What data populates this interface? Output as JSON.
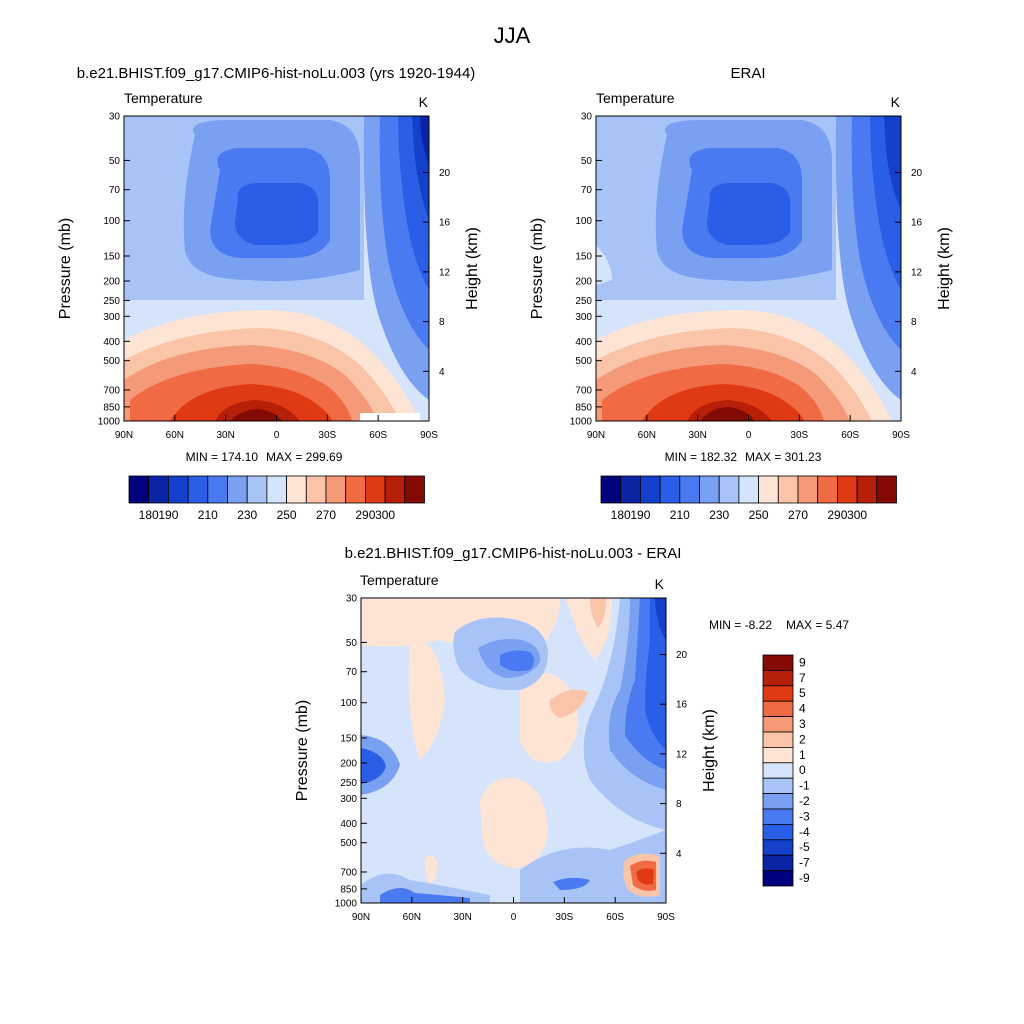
{
  "page_title": "JJA",
  "chart_data": [
    {
      "type": "contour",
      "title": "b.e21.BHIST.f09_g17.CMIP6-hist-noLu.003 (yrs 1920-1944)",
      "variable": "Temperature",
      "units": "K",
      "xlabel": "",
      "ylabel": "Pressure (mb)",
      "ylabel_right": "Height (km)",
      "x_tick_labels": [
        "90N",
        "60N",
        "30N",
        "0",
        "30S",
        "60S",
        "90S"
      ],
      "x_values": [
        90,
        60,
        30,
        0,
        -30,
        -60,
        -90
      ],
      "y_tick_labels": [
        "30",
        "50",
        "70",
        "100",
        "150",
        "200",
        "250",
        "300",
        "400",
        "500",
        "700",
        "850",
        "1000"
      ],
      "y_values": [
        30,
        50,
        70,
        100,
        150,
        200,
        250,
        300,
        400,
        500,
        700,
        850,
        1000
      ],
      "y_scale": "log",
      "right_tick_labels": [
        "20",
        "16",
        "12",
        "8",
        "4"
      ],
      "min_label": "MIN = 174.10",
      "max_label": "MAX = 299.69",
      "min": 174.1,
      "max": 299.69,
      "colorbar_levels": [
        180,
        190,
        200,
        210,
        220,
        230,
        240,
        250,
        260,
        270,
        280,
        290,
        300
      ],
      "colorbar_labels": [
        "180",
        "190",
        "210",
        "230",
        "250",
        "270",
        "290",
        "300"
      ],
      "colorbar_orientation": "horizontal"
    },
    {
      "type": "contour",
      "title": "ERAI",
      "variable": "Temperature",
      "units": "K",
      "xlabel": "",
      "ylabel": "Pressure (mb)",
      "ylabel_right": "Height (km)",
      "x_tick_labels": [
        "90N",
        "60N",
        "30N",
        "0",
        "30S",
        "60S",
        "90S"
      ],
      "x_values": [
        90,
        60,
        30,
        0,
        -30,
        -60,
        -90
      ],
      "y_tick_labels": [
        "30",
        "50",
        "70",
        "100",
        "150",
        "200",
        "250",
        "300",
        "400",
        "500",
        "700",
        "850",
        "1000"
      ],
      "y_values": [
        30,
        50,
        70,
        100,
        150,
        200,
        250,
        300,
        400,
        500,
        700,
        850,
        1000
      ],
      "y_scale": "log",
      "right_tick_labels": [
        "20",
        "16",
        "12",
        "8",
        "4"
      ],
      "min_label": "MIN = 182.32",
      "max_label": "MAX = 301.23",
      "min": 182.32,
      "max": 301.23,
      "colorbar_levels": [
        180,
        190,
        200,
        210,
        220,
        230,
        240,
        250,
        260,
        270,
        280,
        290,
        300
      ],
      "colorbar_labels": [
        "180",
        "190",
        "210",
        "230",
        "250",
        "270",
        "290",
        "300"
      ],
      "colorbar_orientation": "horizontal"
    },
    {
      "type": "contour",
      "title": "b.e21.BHIST.f09_g17.CMIP6-hist-noLu.003 - ERAI",
      "variable": "Temperature",
      "units": "K",
      "xlabel": "",
      "ylabel": "Pressure (mb)",
      "ylabel_right": "Height (km)",
      "x_tick_labels": [
        "90N",
        "60N",
        "30N",
        "0",
        "30S",
        "60S",
        "90S"
      ],
      "x_values": [
        90,
        60,
        30,
        0,
        -30,
        -60,
        -90
      ],
      "y_tick_labels": [
        "30",
        "50",
        "70",
        "100",
        "150",
        "200",
        "250",
        "300",
        "400",
        "500",
        "700",
        "850",
        "1000"
      ],
      "y_values": [
        30,
        50,
        70,
        100,
        150,
        200,
        250,
        300,
        400,
        500,
        700,
        850,
        1000
      ],
      "y_scale": "log",
      "right_tick_labels": [
        "20",
        "16",
        "12",
        "8",
        "4"
      ],
      "min_label": "MIN =  -8.22",
      "max_label": "MAX =   5.47",
      "min": -8.22,
      "max": 5.47,
      "colorbar_levels": [
        9,
        7,
        5,
        4,
        3,
        2,
        1,
        0,
        -1,
        -2,
        -3,
        -4,
        -5,
        -7,
        -9
      ],
      "colorbar_labels": [
        "9",
        "7",
        "5",
        "4",
        "3",
        "2",
        "1",
        "0",
        "-1",
        "-2",
        "-3",
        "-4",
        "-5",
        "-7",
        "-9"
      ],
      "colorbar_orientation": "vertical"
    }
  ],
  "colors": {
    "temperature_scale": [
      "#00007f",
      "#0a24a6",
      "#1440cc",
      "#2a5ee6",
      "#4a7af2",
      "#7aa0f2",
      "#a8c4f7",
      "#d6e4fb",
      "#fde4d4",
      "#f9c4a8",
      "#f59a78",
      "#f06a44",
      "#e03a14",
      "#b61f08",
      "#840a04"
    ],
    "difference_scale": [
      "#840a04",
      "#b61f08",
      "#e03a14",
      "#f06a44",
      "#f59a78",
      "#f9c4a8",
      "#fde4d4",
      "#d6e4fb",
      "#a8c4f7",
      "#7aa0f2",
      "#4a7af2",
      "#2a5ee6",
      "#1440cc",
      "#0a24a6",
      "#00007f"
    ]
  }
}
